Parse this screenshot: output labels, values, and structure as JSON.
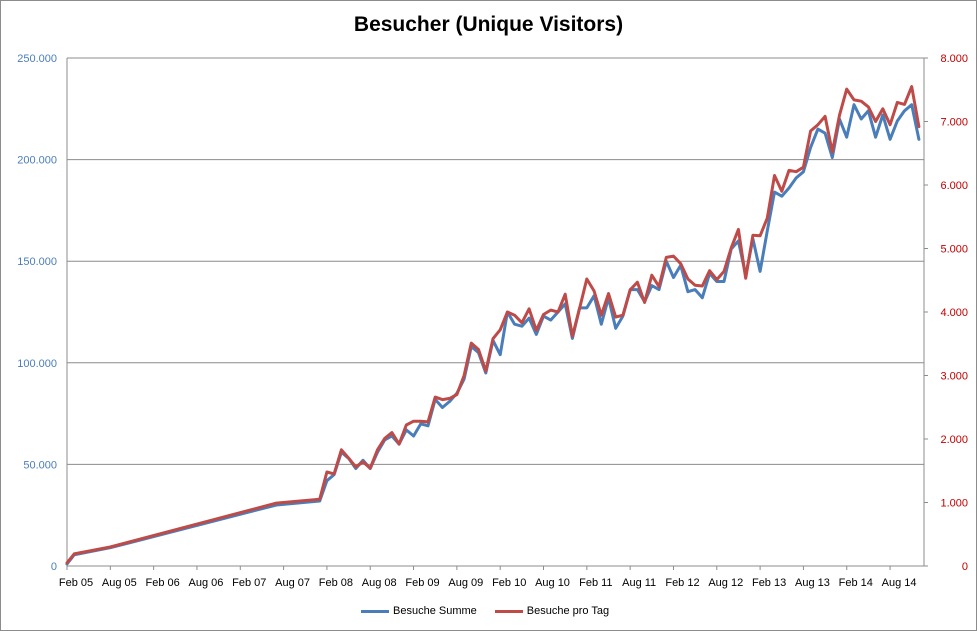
{
  "chart_data": {
    "type": "line",
    "title": "Besucher (Unique Visitors)",
    "xlabel": "",
    "ylabel": "",
    "y_left_lim": [
      0,
      250000
    ],
    "y_right_lim": [
      0,
      8000
    ],
    "y_left_ticks": [
      "0",
      "50.000",
      "100.000",
      "150.000",
      "200.000",
      "250.000"
    ],
    "y_right_ticks": [
      "0",
      "1.000",
      "2.000",
      "3.000",
      "4.000",
      "5.000",
      "6.000",
      "7.000",
      "8.000"
    ],
    "x_tick_labels": [
      "Feb 05",
      "Aug 05",
      "Feb 06",
      "Aug 06",
      "Feb 07",
      "Aug 07",
      "Feb 08",
      "Aug 08",
      "Feb 09",
      "Aug 09",
      "Feb 10",
      "Aug 10",
      "Feb 11",
      "Aug 11",
      "Feb 12",
      "Aug 12",
      "Feb 13",
      "Aug 13",
      "Feb 14",
      "Aug 14"
    ],
    "grid": "horizontal",
    "legend": "bottom",
    "series": [
      {
        "name": "Besuche Summe",
        "axis": "left",
        "color": "#4a7eba",
        "points": [
          [
            "2005-02",
            1000
          ],
          [
            "2005-03",
            5500
          ],
          [
            "2005-08",
            9000
          ],
          [
            "2007-07",
            30000
          ],
          [
            "2008-01",
            32000
          ],
          [
            "2008-02",
            42000
          ],
          [
            "2008-03",
            45000
          ],
          [
            "2008-04",
            56000
          ],
          [
            "2008-05",
            53000
          ],
          [
            "2008-06",
            48000
          ],
          [
            "2008-07",
            52000
          ],
          [
            "2008-08",
            48000
          ],
          [
            "2008-09",
            56000
          ],
          [
            "2008-10",
            62000
          ],
          [
            "2008-11",
            64000
          ],
          [
            "2008-12",
            60000
          ],
          [
            "2009-01",
            67000
          ],
          [
            "2009-02",
            64000
          ],
          [
            "2009-03",
            70000
          ],
          [
            "2009-04",
            69000
          ],
          [
            "2009-05",
            82000
          ],
          [
            "2009-06",
            78000
          ],
          [
            "2009-07",
            81000
          ],
          [
            "2009-08",
            85000
          ],
          [
            "2009-09",
            92000
          ],
          [
            "2009-10",
            108000
          ],
          [
            "2009-11",
            105000
          ],
          [
            "2009-12",
            95000
          ],
          [
            "2010-01",
            111000
          ],
          [
            "2010-02",
            104000
          ],
          [
            "2010-03",
            125000
          ],
          [
            "2010-04",
            119000
          ],
          [
            "2010-05",
            118000
          ],
          [
            "2010-06",
            122000
          ],
          [
            "2010-07",
            114000
          ],
          [
            "2010-08",
            123000
          ],
          [
            "2010-09",
            121000
          ],
          [
            "2010-10",
            125000
          ],
          [
            "2010-11",
            129000
          ],
          [
            "2010-12",
            112000
          ],
          [
            "2011-01",
            127000
          ],
          [
            "2011-02",
            127000
          ],
          [
            "2011-03",
            133000
          ],
          [
            "2011-04",
            119000
          ],
          [
            "2011-05",
            132000
          ],
          [
            "2011-06",
            117000
          ],
          [
            "2011-07",
            123000
          ],
          [
            "2011-08",
            136000
          ],
          [
            "2011-09",
            136000
          ],
          [
            "2011-10",
            130000
          ],
          [
            "2011-11",
            138000
          ],
          [
            "2011-12",
            136000
          ],
          [
            "2012-01",
            150000
          ],
          [
            "2012-02",
            142000
          ],
          [
            "2012-03",
            148000
          ],
          [
            "2012-04",
            135000
          ],
          [
            "2012-05",
            136000
          ],
          [
            "2012-06",
            132000
          ],
          [
            "2012-07",
            144000
          ],
          [
            "2012-08",
            140000
          ],
          [
            "2012-09",
            140000
          ],
          [
            "2012-10",
            156000
          ],
          [
            "2012-11",
            160000
          ],
          [
            "2012-12",
            143000
          ],
          [
            "2013-01",
            161000
          ],
          [
            "2013-02",
            145000
          ],
          [
            "2013-03",
            165000
          ],
          [
            "2013-04",
            184000
          ],
          [
            "2013-05",
            182000
          ],
          [
            "2013-06",
            186000
          ],
          [
            "2013-07",
            191000
          ],
          [
            "2013-08",
            194000
          ],
          [
            "2013-09",
            206000
          ],
          [
            "2013-10",
            215000
          ],
          [
            "2013-11",
            213000
          ],
          [
            "2013-12",
            201000
          ],
          [
            "2014-01",
            220000
          ],
          [
            "2014-02",
            211000
          ],
          [
            "2014-03",
            227000
          ],
          [
            "2014-04",
            220000
          ],
          [
            "2014-05",
            224000
          ],
          [
            "2014-06",
            211000
          ],
          [
            "2014-07",
            222000
          ],
          [
            "2014-08",
            210000
          ],
          [
            "2014-09",
            219000
          ],
          [
            "2014-10",
            224000
          ],
          [
            "2014-11",
            227000
          ],
          [
            "2014-12",
            210000
          ]
        ]
      },
      {
        "name": "Besuche pro Tag",
        "axis": "right",
        "color": "#be4b48",
        "points": [
          [
            "2005-02",
            50
          ],
          [
            "2005-03",
            190
          ],
          [
            "2005-08",
            300
          ],
          [
            "2007-07",
            990
          ],
          [
            "2008-01",
            1050
          ],
          [
            "2008-02",
            1480
          ],
          [
            "2008-03",
            1450
          ],
          [
            "2008-04",
            1830
          ],
          [
            "2008-05",
            1700
          ],
          [
            "2008-06",
            1560
          ],
          [
            "2008-07",
            1640
          ],
          [
            "2008-08",
            1540
          ],
          [
            "2008-09",
            1830
          ],
          [
            "2008-10",
            2010
          ],
          [
            "2008-11",
            2100
          ],
          [
            "2008-12",
            1920
          ],
          [
            "2009-01",
            2220
          ],
          [
            "2009-02",
            2280
          ],
          [
            "2009-03",
            2280
          ],
          [
            "2009-04",
            2270
          ],
          [
            "2009-05",
            2660
          ],
          [
            "2009-06",
            2620
          ],
          [
            "2009-07",
            2640
          ],
          [
            "2009-08",
            2700
          ],
          [
            "2009-09",
            3000
          ],
          [
            "2009-10",
            3510
          ],
          [
            "2009-11",
            3410
          ],
          [
            "2009-12",
            3070
          ],
          [
            "2010-01",
            3580
          ],
          [
            "2010-02",
            3720
          ],
          [
            "2010-03",
            4000
          ],
          [
            "2010-04",
            3950
          ],
          [
            "2010-05",
            3830
          ],
          [
            "2010-06",
            4050
          ],
          [
            "2010-07",
            3710
          ],
          [
            "2010-08",
            3960
          ],
          [
            "2010-09",
            4030
          ],
          [
            "2010-10",
            4000
          ],
          [
            "2010-11",
            4280
          ],
          [
            "2010-12",
            3620
          ],
          [
            "2011-01",
            4060
          ],
          [
            "2011-02",
            4520
          ],
          [
            "2011-03",
            4330
          ],
          [
            "2011-04",
            3950
          ],
          [
            "2011-05",
            4290
          ],
          [
            "2011-06",
            3920
          ],
          [
            "2011-07",
            3950
          ],
          [
            "2011-08",
            4350
          ],
          [
            "2011-09",
            4470
          ],
          [
            "2011-10",
            4150
          ],
          [
            "2011-11",
            4580
          ],
          [
            "2011-12",
            4400
          ],
          [
            "2012-01",
            4860
          ],
          [
            "2012-02",
            4880
          ],
          [
            "2012-03",
            4760
          ],
          [
            "2012-04",
            4520
          ],
          [
            "2012-05",
            4420
          ],
          [
            "2012-06",
            4410
          ],
          [
            "2012-07",
            4650
          ],
          [
            "2012-08",
            4510
          ],
          [
            "2012-09",
            4640
          ],
          [
            "2012-10",
            5010
          ],
          [
            "2012-11",
            5300
          ],
          [
            "2012-12",
            4530
          ],
          [
            "2013-01",
            5210
          ],
          [
            "2013-02",
            5200
          ],
          [
            "2013-03",
            5480
          ],
          [
            "2013-04",
            6150
          ],
          [
            "2013-05",
            5900
          ],
          [
            "2013-06",
            6230
          ],
          [
            "2013-07",
            6210
          ],
          [
            "2013-08",
            6280
          ],
          [
            "2013-09",
            6850
          ],
          [
            "2013-10",
            6950
          ],
          [
            "2013-11",
            7080
          ],
          [
            "2013-12",
            6520
          ],
          [
            "2014-01",
            7100
          ],
          [
            "2014-02",
            7510
          ],
          [
            "2014-03",
            7340
          ],
          [
            "2014-04",
            7320
          ],
          [
            "2014-05",
            7230
          ],
          [
            "2014-06",
            7000
          ],
          [
            "2014-07",
            7200
          ],
          [
            "2014-08",
            6950
          ],
          [
            "2014-09",
            7300
          ],
          [
            "2014-10",
            7270
          ],
          [
            "2014-11",
            7550
          ],
          [
            "2014-12",
            6920
          ]
        ]
      }
    ]
  }
}
